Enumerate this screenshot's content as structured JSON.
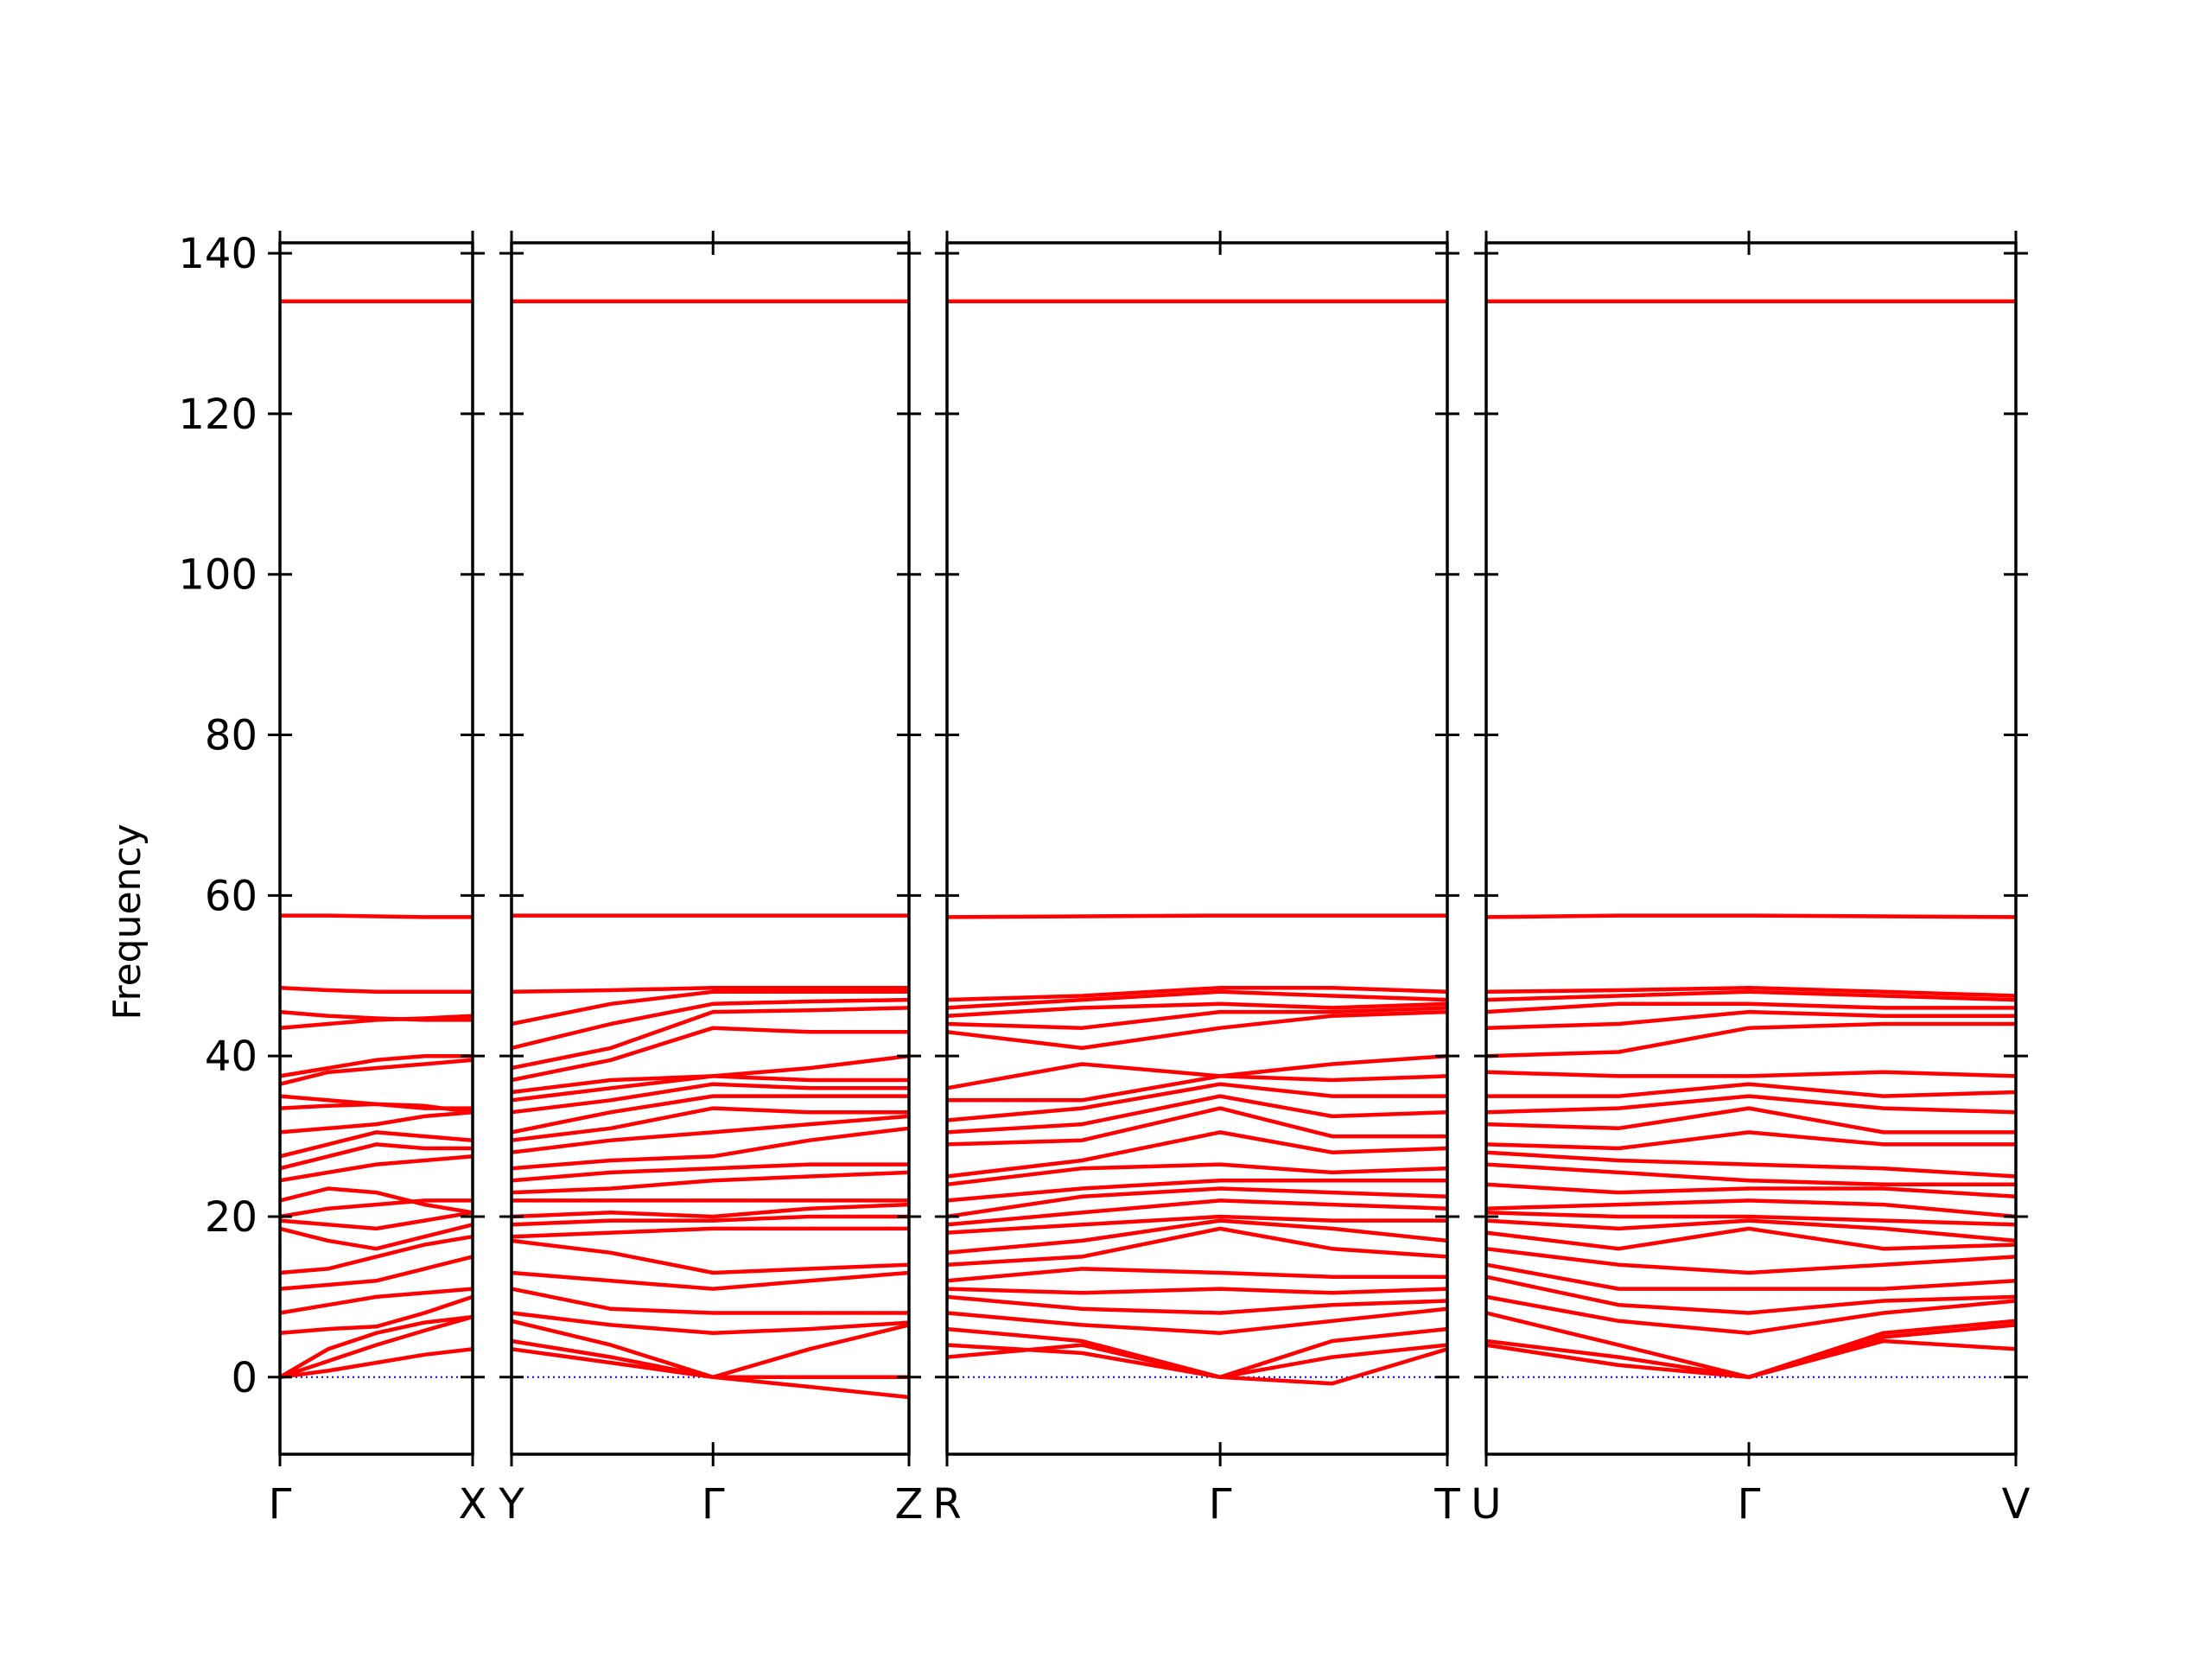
{
  "chart_data": [
    {
      "type": "line",
      "color": "#ff0000",
      "zero_line_color": "#0000ff",
      "ylabel": "Frequency",
      "ytick_labels": true,
      "x": [
        0,
        0.25,
        0.5,
        0.75,
        1
      ],
      "xlim": [
        0,
        1
      ],
      "xticks": [
        {
          "value": 0,
          "label": "Γ"
        },
        {
          "value": 1,
          "label": "X"
        }
      ],
      "ylim": [
        -9.6,
        141.3
      ],
      "yticks": [
        0,
        20,
        40,
        60,
        80,
        100,
        120,
        140
      ],
      "series": [
        {
          "values": [
            0,
            0.8,
            1.8,
            2.8,
            3.5
          ]
        },
        {
          "values": [
            0,
            2,
            4,
            5.8,
            7.5
          ]
        },
        {
          "values": [
            0,
            3.5,
            5.5,
            6.8,
            7.5
          ]
        },
        {
          "values": [
            5.5,
            6,
            6.3,
            8,
            10
          ]
        },
        {
          "values": [
            8,
            9,
            10,
            10.5,
            11
          ]
        },
        {
          "values": [
            11,
            11.5,
            12,
            13.5,
            15
          ]
        },
        {
          "values": [
            13,
            13.5,
            15,
            16.5,
            17.5
          ]
        },
        {
          "values": [
            18.5,
            17,
            16,
            17.5,
            19
          ]
        },
        {
          "values": [
            19.5,
            19,
            18.5,
            19.5,
            20.5
          ]
        },
        {
          "values": [
            20,
            21,
            21.5,
            22,
            22
          ]
        },
        {
          "values": [
            22,
            23.5,
            23,
            21.5,
            20.5
          ]
        },
        {
          "values": [
            24.5,
            25.5,
            26.5,
            27,
            27.5
          ]
        },
        {
          "values": [
            26,
            27.5,
            29,
            28.5,
            28.5
          ]
        },
        {
          "values": [
            27.5,
            29,
            30.5,
            30,
            29.5
          ]
        },
        {
          "values": [
            30.5,
            31,
            31.5,
            32.5,
            33
          ]
        },
        {
          "values": [
            33.5,
            33.8,
            34,
            33.5,
            33.5
          ]
        },
        {
          "values": [
            35,
            34.5,
            34,
            33.8,
            33
          ]
        },
        {
          "values": [
            36.5,
            38,
            38.5,
            39,
            39.5
          ]
        },
        {
          "values": [
            37.5,
            38.5,
            39.5,
            40,
            40
          ]
        },
        {
          "values": [
            43.5,
            44,
            44.5,
            44.7,
            45
          ]
        },
        {
          "values": [
            45.5,
            45,
            44.7,
            44.5,
            44.5
          ]
        },
        {
          "values": [
            48.5,
            48.2,
            48,
            48,
            48
          ]
        },
        {
          "values": [
            57.5,
            57.5,
            57.4,
            57.3,
            57.3
          ]
        },
        {
          "values": [
            134,
            134,
            134,
            134,
            134
          ]
        }
      ]
    },
    {
      "type": "line",
      "color": "#ff0000",
      "zero_line_color": "#0000ff",
      "ytick_labels": false,
      "x": [
        0,
        0.25,
        0.507,
        0.75,
        1
      ],
      "xlim": [
        0,
        1
      ],
      "xticks": [
        {
          "value": 0,
          "label": "Y"
        },
        {
          "value": 0.507,
          "label": "Γ"
        },
        {
          "value": 1,
          "label": "Z"
        }
      ],
      "ylim": [
        -9.6,
        141.3
      ],
      "yticks": [
        0,
        20,
        40,
        60,
        80,
        100,
        120,
        140
      ],
      "series": [
        {
          "values": [
            3.5,
            1.8,
            0,
            -1.2,
            -2.5
          ]
        },
        {
          "values": [
            4.5,
            2.5,
            0,
            0,
            0
          ]
        },
        {
          "values": [
            7,
            4,
            0,
            3.5,
            6.5
          ]
        },
        {
          "values": [
            8,
            6.5,
            5.5,
            6,
            6.8
          ]
        },
        {
          "values": [
            11,
            8.5,
            8,
            8,
            8
          ]
        },
        {
          "values": [
            13,
            12,
            11,
            12,
            13
          ]
        },
        {
          "values": [
            17,
            15.5,
            13,
            13.5,
            14
          ]
        },
        {
          "values": [
            17.5,
            18,
            18.5,
            18.5,
            18.5
          ]
        },
        {
          "values": [
            19,
            19.5,
            19.5,
            20,
            20
          ]
        },
        {
          "values": [
            20,
            20.5,
            20,
            21,
            21.5
          ]
        },
        {
          "values": [
            22,
            22,
            22,
            22,
            22
          ]
        },
        {
          "values": [
            23,
            23.5,
            24.5,
            25,
            25.5
          ]
        },
        {
          "values": [
            24.5,
            25.5,
            26,
            26.5,
            26.5
          ]
        },
        {
          "values": [
            26,
            27,
            27.5,
            29.5,
            31
          ]
        },
        {
          "values": [
            28,
            29.5,
            30.5,
            31.5,
            32.5
          ]
        },
        {
          "values": [
            29.5,
            31,
            33.5,
            33,
            33
          ]
        },
        {
          "values": [
            30.5,
            33,
            35,
            35,
            35
          ]
        },
        {
          "values": [
            33,
            34.5,
            36.5,
            36,
            36
          ]
        },
        {
          "values": [
            34.5,
            36,
            37.5,
            37,
            37
          ]
        },
        {
          "values": [
            35.5,
            37,
            37.5,
            38.5,
            40
          ]
        },
        {
          "values": [
            37,
            39.5,
            43.5,
            43,
            43
          ]
        },
        {
          "values": [
            38.5,
            41,
            45.5,
            45.7,
            46
          ]
        },
        {
          "values": [
            41,
            44,
            46.5,
            46.8,
            47
          ]
        },
        {
          "values": [
            44,
            46.5,
            48,
            48,
            48
          ]
        },
        {
          "values": [
            48,
            48.2,
            48.5,
            48.5,
            48.5
          ]
        },
        {
          "values": [
            57.5,
            57.5,
            57.5,
            57.5,
            57.5
          ]
        },
        {
          "values": [
            134,
            134,
            134,
            134,
            134
          ]
        }
      ]
    },
    {
      "type": "line",
      "color": "#ff0000",
      "zero_line_color": "#0000ff",
      "ytick_labels": false,
      "x": [
        0,
        0.27,
        0.546,
        0.77,
        1
      ],
      "xlim": [
        0,
        1
      ],
      "xticks": [
        {
          "value": 0,
          "label": "R"
        },
        {
          "value": 0.546,
          "label": "Γ"
        },
        {
          "value": 1,
          "label": "T"
        }
      ],
      "ylim": [
        -9.6,
        141.3
      ],
      "yticks": [
        0,
        20,
        40,
        60,
        80,
        100,
        120,
        140
      ],
      "series": [
        {
          "values": [
            2.5,
            4,
            0,
            -0.8,
            3.5
          ]
        },
        {
          "values": [
            4,
            3,
            0,
            2.5,
            4
          ]
        },
        {
          "values": [
            6,
            4.5,
            0,
            4.5,
            6
          ]
        },
        {
          "values": [
            8,
            6.5,
            5.5,
            7,
            8.5
          ]
        },
        {
          "values": [
            10,
            8.5,
            8,
            9,
            9.5
          ]
        },
        {
          "values": [
            11,
            10.5,
            11,
            10.5,
            11
          ]
        },
        {
          "values": [
            12,
            13.5,
            13,
            12.5,
            12.5
          ]
        },
        {
          "values": [
            14,
            15,
            18.5,
            16,
            15
          ]
        },
        {
          "values": [
            15.5,
            17,
            19.5,
            18.5,
            17
          ]
        },
        {
          "values": [
            18,
            19,
            20,
            19.5,
            19.5
          ]
        },
        {
          "values": [
            19,
            20.5,
            22,
            21.5,
            21
          ]
        },
        {
          "values": [
            20,
            22.5,
            23.5,
            23,
            22.5
          ]
        },
        {
          "values": [
            22,
            23.5,
            24.5,
            24.5,
            24.5
          ]
        },
        {
          "values": [
            24,
            26,
            26.5,
            25.5,
            26
          ]
        },
        {
          "values": [
            25,
            27,
            30.5,
            28,
            28.5
          ]
        },
        {
          "values": [
            29,
            29.5,
            33.5,
            30,
            30
          ]
        },
        {
          "values": [
            30.5,
            31.5,
            35,
            32.5,
            33
          ]
        },
        {
          "values": [
            32,
            33.5,
            36.5,
            35,
            35
          ]
        },
        {
          "values": [
            34.5,
            34.5,
            37.5,
            37,
            37.5
          ]
        },
        {
          "values": [
            36,
            39,
            37.5,
            39,
            40
          ]
        },
        {
          "values": [
            43,
            41,
            43.5,
            45,
            45.5
          ]
        },
        {
          "values": [
            44,
            43.5,
            45.5,
            45.5,
            46
          ]
        },
        {
          "values": [
            45,
            46,
            46.5,
            46,
            46.5
          ]
        },
        {
          "values": [
            46,
            47,
            48,
            47.5,
            47
          ]
        },
        {
          "values": [
            47,
            47.5,
            48.5,
            48.5,
            48
          ]
        },
        {
          "values": [
            57.3,
            57.4,
            57.5,
            57.5,
            57.5
          ]
        },
        {
          "values": [
            134,
            134,
            134,
            134,
            134
          ]
        }
      ]
    },
    {
      "type": "line",
      "color": "#ff0000",
      "zero_line_color": "#0000ff",
      "ytick_labels": false,
      "x": [
        0,
        0.25,
        0.496,
        0.75,
        1
      ],
      "xlim": [
        0,
        1
      ],
      "xticks": [
        {
          "value": 0,
          "label": "U"
        },
        {
          "value": 0.496,
          "label": "Γ"
        },
        {
          "value": 1,
          "label": "V"
        }
      ],
      "ylim": [
        -9.6,
        141.3
      ],
      "yticks": [
        0,
        20,
        40,
        60,
        80,
        100,
        120,
        140
      ],
      "series": [
        {
          "values": [
            4,
            1.5,
            0,
            4.5,
            3.5
          ]
        },
        {
          "values": [
            4.5,
            2.5,
            0,
            5,
            6.5
          ]
        },
        {
          "values": [
            8,
            4,
            0,
            5.5,
            7
          ]
        },
        {
          "values": [
            10,
            7,
            5.5,
            8,
            9.5
          ]
        },
        {
          "values": [
            12.5,
            9,
            8,
            9.5,
            10
          ]
        },
        {
          "values": [
            14,
            11,
            11,
            11,
            12
          ]
        },
        {
          "values": [
            16,
            14,
            13,
            14,
            15
          ]
        },
        {
          "values": [
            18,
            16,
            18.5,
            16,
            16.5
          ]
        },
        {
          "values": [
            19.5,
            18.5,
            19.5,
            18.5,
            17
          ]
        },
        {
          "values": [
            20.5,
            20,
            20,
            19.5,
            19
          ]
        },
        {
          "values": [
            21,
            21.5,
            22,
            21.5,
            20
          ]
        },
        {
          "values": [
            24,
            23,
            23.5,
            23.5,
            22.5
          ]
        },
        {
          "values": [
            26.5,
            25.5,
            24.5,
            24,
            24
          ]
        },
        {
          "values": [
            28,
            27,
            26.5,
            26,
            25
          ]
        },
        {
          "values": [
            29,
            28.5,
            30.5,
            29,
            29
          ]
        },
        {
          "values": [
            31.5,
            31,
            33.5,
            30.5,
            30.5
          ]
        },
        {
          "values": [
            33,
            33.5,
            35,
            33.5,
            33
          ]
        },
        {
          "values": [
            35,
            35,
            36.5,
            35,
            35.5
          ]
        },
        {
          "values": [
            38,
            37.5,
            37.5,
            38,
            37.5
          ]
        },
        {
          "values": [
            40,
            40.5,
            43.5,
            44,
            44
          ]
        },
        {
          "values": [
            43.5,
            44,
            45.5,
            45,
            45
          ]
        },
        {
          "values": [
            45.5,
            46.5,
            46.5,
            46,
            46
          ]
        },
        {
          "values": [
            47,
            47.5,
            48,
            47.5,
            47
          ]
        },
        {
          "values": [
            48,
            48.2,
            48.5,
            48,
            47.5
          ]
        },
        {
          "values": [
            57.3,
            57.5,
            57.5,
            57.4,
            57.3
          ]
        },
        {
          "values": [
            134,
            134,
            134,
            134,
            134
          ]
        }
      ]
    }
  ]
}
